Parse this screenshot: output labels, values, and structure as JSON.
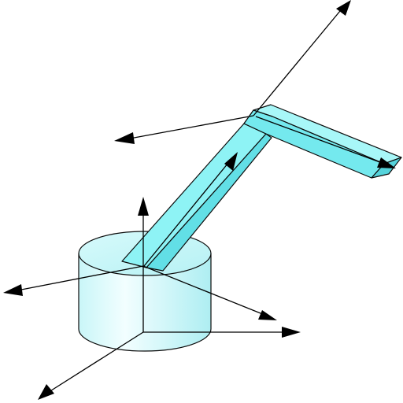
{
  "figure": {
    "subject": "robot-arm-kinematic-diagram",
    "colors": {
      "background": "#ffffff",
      "line": "#000000",
      "cyan_face": "#7ff0f2",
      "cyan_top": "#bdf9fa",
      "cyan_dark": "#5fd6dc",
      "cylinder_light": "#e8fcfd",
      "cylinder_mid": "#b9f1f4"
    },
    "icons": {
      "base": "cylinder-base",
      "link1": "lower-arm-link",
      "link2": "upper-arm-link",
      "axes": "coordinate-frame-arrows"
    }
  }
}
